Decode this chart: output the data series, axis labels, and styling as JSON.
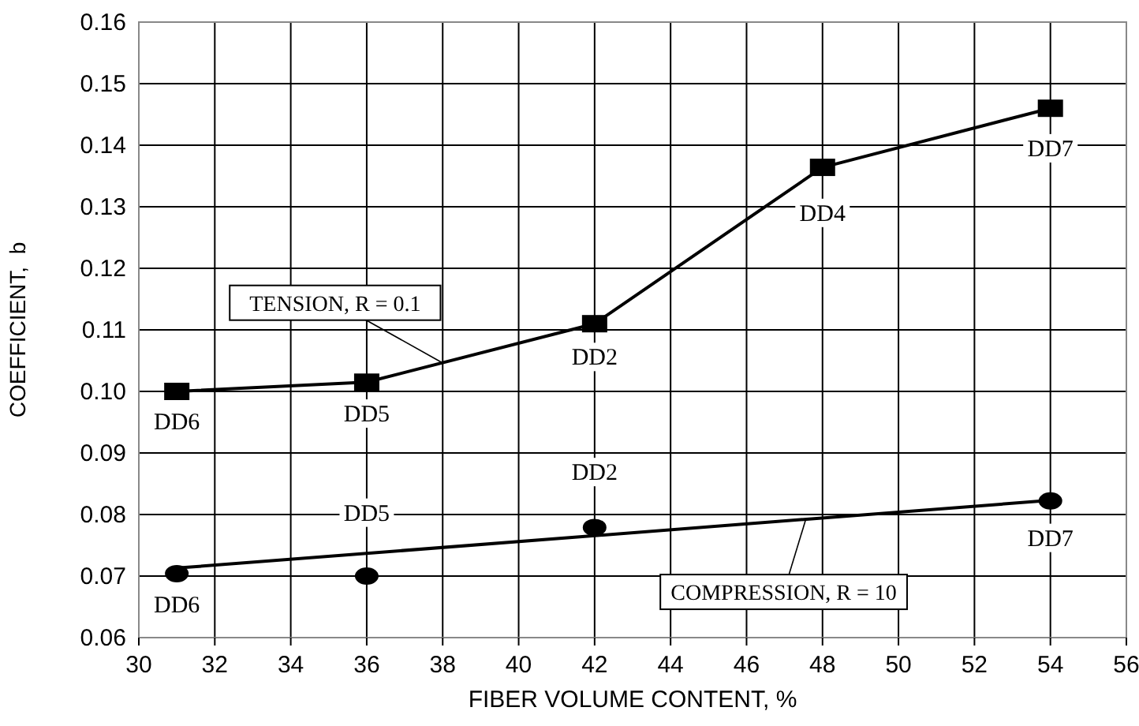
{
  "chart_data": {
    "type": "line",
    "xlabel": "FIBER VOLUME CONTENT, %",
    "ylabel": "COEFFICIENT,  b",
    "xlim": [
      30,
      56
    ],
    "xticks": [
      30,
      32,
      34,
      36,
      38,
      40,
      42,
      44,
      46,
      48,
      50,
      52,
      54,
      56
    ],
    "ylim": [
      0.06,
      0.16
    ],
    "yticks": [
      {
        "value": 0.06,
        "label": "0.06"
      },
      {
        "value": 0.07,
        "label": "0.07"
      },
      {
        "value": 0.08,
        "label": "0.08"
      },
      {
        "value": 0.09,
        "label": "0.09"
      },
      {
        "value": 0.1,
        "label": "0.10"
      },
      {
        "value": 0.11,
        "label": "0.11"
      },
      {
        "value": 0.12,
        "label": "0.12"
      },
      {
        "value": 0.13,
        "label": "0.13"
      },
      {
        "value": 0.14,
        "label": "0.14"
      },
      {
        "value": 0.15,
        "label": "0.15"
      },
      {
        "value": 0.16,
        "label": "0.16"
      }
    ],
    "grid": true,
    "series": [
      {
        "name": "TENSION, R = 0.1",
        "marker": "square",
        "color": "#000000",
        "x": [
          31,
          36,
          42,
          48,
          54
        ],
        "values": [
          0.1,
          0.1015,
          0.111,
          0.1364,
          0.146
        ]
      },
      {
        "type": "scatter",
        "marker": "circle",
        "color": "#000000",
        "x": [
          31,
          36,
          42,
          54
        ],
        "values": [
          0.0704,
          0.07,
          0.0779,
          0.0822
        ]
      },
      {
        "name": "COMPRESSION, R = 10",
        "type": "line",
        "marker": "none",
        "color": "#000000",
        "x": [
          31,
          54
        ],
        "values": [
          0.0713,
          0.0823
        ]
      }
    ],
    "annotations": [
      {
        "text": "DD6",
        "x": 31,
        "y": 0.0951
      },
      {
        "text": "DD5",
        "x": 36,
        "y": 0.0964
      },
      {
        "text": "DD2",
        "x": 42,
        "y": 0.1056
      },
      {
        "text": "DD4",
        "x": 48,
        "y": 0.129
      },
      {
        "text": "DD7",
        "x": 54,
        "y": 0.1395
      },
      {
        "text": "DD6",
        "x": 31,
        "y": 0.0654
      },
      {
        "text": "DD5",
        "x": 36,
        "y": 0.0803
      },
      {
        "text": "DD2",
        "x": 42,
        "y": 0.0869
      },
      {
        "text": "DD7",
        "x": 54,
        "y": 0.0762
      }
    ]
  }
}
